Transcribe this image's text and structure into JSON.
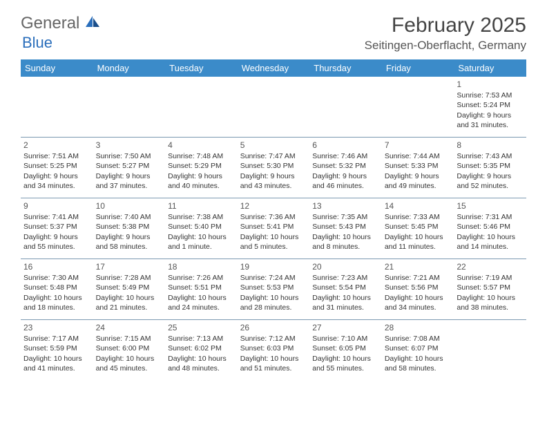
{
  "logo": {
    "text1": "General",
    "text2": "Blue"
  },
  "title": "February 2025",
  "location": "Seitingen-Oberflacht, Germany",
  "colors": {
    "header_bg": "#3b8bc9",
    "header_fg": "#ffffff",
    "rule": "#7a98b0",
    "logo_accent": "#2a6ebb"
  },
  "weekdays": [
    "Sunday",
    "Monday",
    "Tuesday",
    "Wednesday",
    "Thursday",
    "Friday",
    "Saturday"
  ],
  "weeks": [
    [
      null,
      null,
      null,
      null,
      null,
      null,
      {
        "d": "1",
        "sr": "Sunrise: 7:53 AM",
        "ss": "Sunset: 5:24 PM",
        "dl": "Daylight: 9 hours and 31 minutes."
      }
    ],
    [
      {
        "d": "2",
        "sr": "Sunrise: 7:51 AM",
        "ss": "Sunset: 5:25 PM",
        "dl": "Daylight: 9 hours and 34 minutes."
      },
      {
        "d": "3",
        "sr": "Sunrise: 7:50 AM",
        "ss": "Sunset: 5:27 PM",
        "dl": "Daylight: 9 hours and 37 minutes."
      },
      {
        "d": "4",
        "sr": "Sunrise: 7:48 AM",
        "ss": "Sunset: 5:29 PM",
        "dl": "Daylight: 9 hours and 40 minutes."
      },
      {
        "d": "5",
        "sr": "Sunrise: 7:47 AM",
        "ss": "Sunset: 5:30 PM",
        "dl": "Daylight: 9 hours and 43 minutes."
      },
      {
        "d": "6",
        "sr": "Sunrise: 7:46 AM",
        "ss": "Sunset: 5:32 PM",
        "dl": "Daylight: 9 hours and 46 minutes."
      },
      {
        "d": "7",
        "sr": "Sunrise: 7:44 AM",
        "ss": "Sunset: 5:33 PM",
        "dl": "Daylight: 9 hours and 49 minutes."
      },
      {
        "d": "8",
        "sr": "Sunrise: 7:43 AM",
        "ss": "Sunset: 5:35 PM",
        "dl": "Daylight: 9 hours and 52 minutes."
      }
    ],
    [
      {
        "d": "9",
        "sr": "Sunrise: 7:41 AM",
        "ss": "Sunset: 5:37 PM",
        "dl": "Daylight: 9 hours and 55 minutes."
      },
      {
        "d": "10",
        "sr": "Sunrise: 7:40 AM",
        "ss": "Sunset: 5:38 PM",
        "dl": "Daylight: 9 hours and 58 minutes."
      },
      {
        "d": "11",
        "sr": "Sunrise: 7:38 AM",
        "ss": "Sunset: 5:40 PM",
        "dl": "Daylight: 10 hours and 1 minute."
      },
      {
        "d": "12",
        "sr": "Sunrise: 7:36 AM",
        "ss": "Sunset: 5:41 PM",
        "dl": "Daylight: 10 hours and 5 minutes."
      },
      {
        "d": "13",
        "sr": "Sunrise: 7:35 AM",
        "ss": "Sunset: 5:43 PM",
        "dl": "Daylight: 10 hours and 8 minutes."
      },
      {
        "d": "14",
        "sr": "Sunrise: 7:33 AM",
        "ss": "Sunset: 5:45 PM",
        "dl": "Daylight: 10 hours and 11 minutes."
      },
      {
        "d": "15",
        "sr": "Sunrise: 7:31 AM",
        "ss": "Sunset: 5:46 PM",
        "dl": "Daylight: 10 hours and 14 minutes."
      }
    ],
    [
      {
        "d": "16",
        "sr": "Sunrise: 7:30 AM",
        "ss": "Sunset: 5:48 PM",
        "dl": "Daylight: 10 hours and 18 minutes."
      },
      {
        "d": "17",
        "sr": "Sunrise: 7:28 AM",
        "ss": "Sunset: 5:49 PM",
        "dl": "Daylight: 10 hours and 21 minutes."
      },
      {
        "d": "18",
        "sr": "Sunrise: 7:26 AM",
        "ss": "Sunset: 5:51 PM",
        "dl": "Daylight: 10 hours and 24 minutes."
      },
      {
        "d": "19",
        "sr": "Sunrise: 7:24 AM",
        "ss": "Sunset: 5:53 PM",
        "dl": "Daylight: 10 hours and 28 minutes."
      },
      {
        "d": "20",
        "sr": "Sunrise: 7:23 AM",
        "ss": "Sunset: 5:54 PM",
        "dl": "Daylight: 10 hours and 31 minutes."
      },
      {
        "d": "21",
        "sr": "Sunrise: 7:21 AM",
        "ss": "Sunset: 5:56 PM",
        "dl": "Daylight: 10 hours and 34 minutes."
      },
      {
        "d": "22",
        "sr": "Sunrise: 7:19 AM",
        "ss": "Sunset: 5:57 PM",
        "dl": "Daylight: 10 hours and 38 minutes."
      }
    ],
    [
      {
        "d": "23",
        "sr": "Sunrise: 7:17 AM",
        "ss": "Sunset: 5:59 PM",
        "dl": "Daylight: 10 hours and 41 minutes."
      },
      {
        "d": "24",
        "sr": "Sunrise: 7:15 AM",
        "ss": "Sunset: 6:00 PM",
        "dl": "Daylight: 10 hours and 45 minutes."
      },
      {
        "d": "25",
        "sr": "Sunrise: 7:13 AM",
        "ss": "Sunset: 6:02 PM",
        "dl": "Daylight: 10 hours and 48 minutes."
      },
      {
        "d": "26",
        "sr": "Sunrise: 7:12 AM",
        "ss": "Sunset: 6:03 PM",
        "dl": "Daylight: 10 hours and 51 minutes."
      },
      {
        "d": "27",
        "sr": "Sunrise: 7:10 AM",
        "ss": "Sunset: 6:05 PM",
        "dl": "Daylight: 10 hours and 55 minutes."
      },
      {
        "d": "28",
        "sr": "Sunrise: 7:08 AM",
        "ss": "Sunset: 6:07 PM",
        "dl": "Daylight: 10 hours and 58 minutes."
      },
      null
    ]
  ]
}
